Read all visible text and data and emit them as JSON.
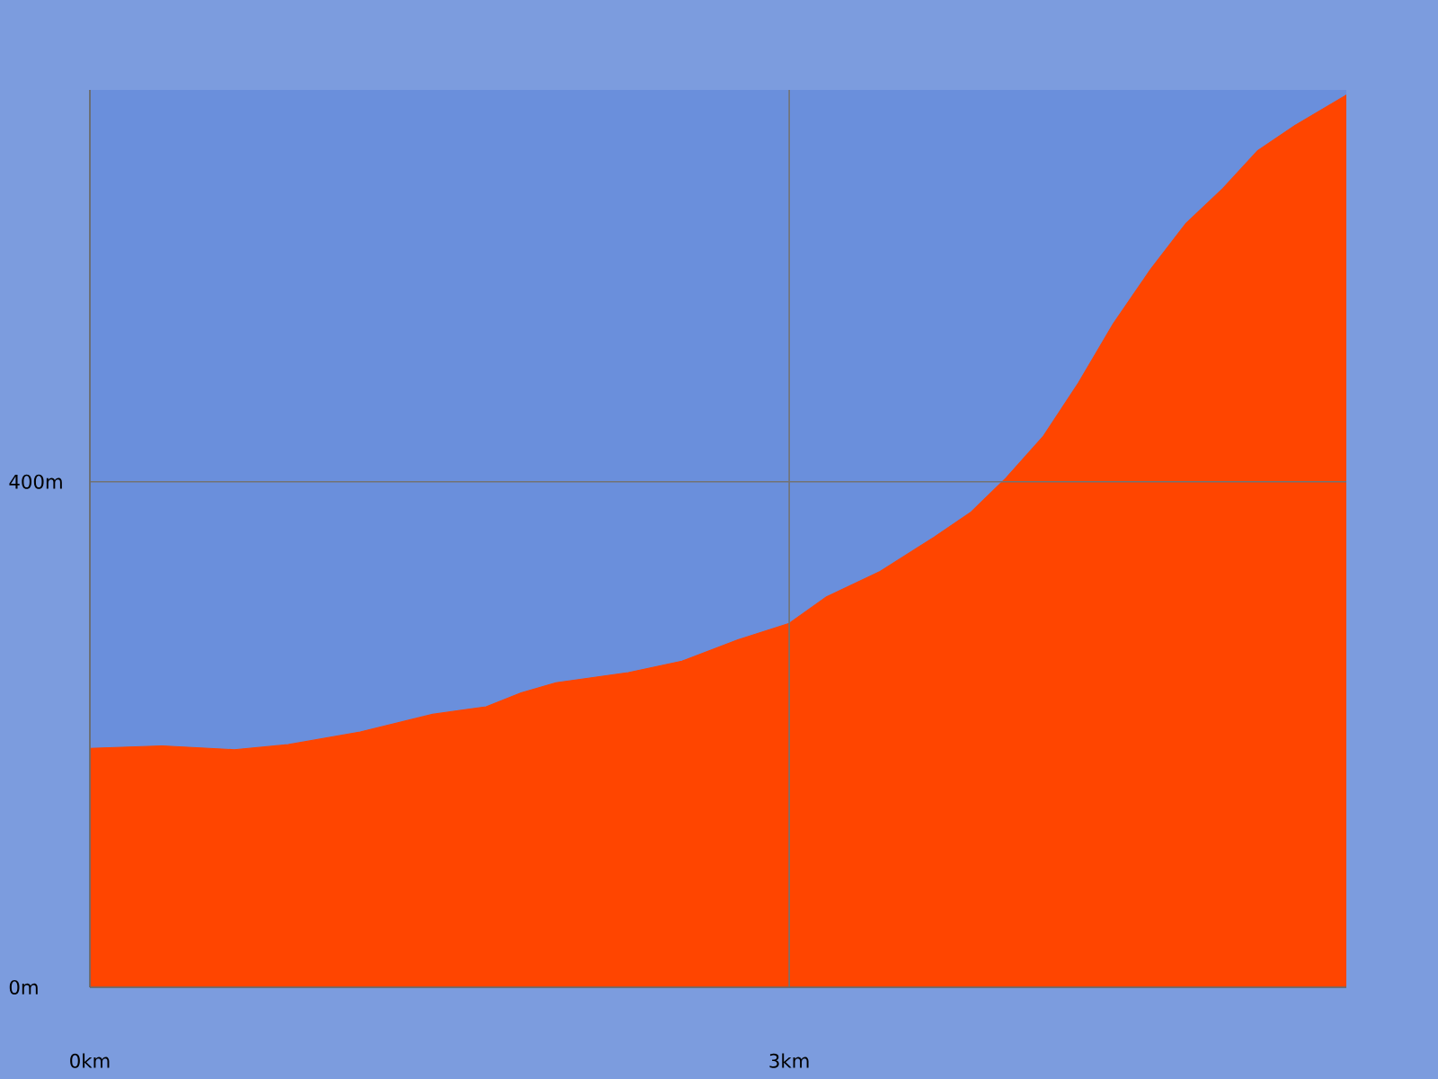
{
  "chart_data": {
    "type": "area",
    "x": [
      0,
      0.31,
      0.62,
      0.85,
      1.16,
      1.47,
      1.7,
      1.85,
      2.0,
      2.31,
      2.54,
      2.78,
      3.0,
      3.16,
      3.39,
      3.62,
      3.78,
      3.93,
      4.09,
      4.24,
      4.39,
      4.55,
      4.7,
      4.86,
      5.01,
      5.17,
      5.39
    ],
    "values": [
      189,
      191,
      188,
      192,
      202,
      216,
      222,
      233,
      241,
      249,
      258,
      275,
      288,
      309,
      329,
      356,
      376,
      403,
      436,
      478,
      525,
      568,
      604,
      632,
      662,
      682,
      706
    ],
    "color": "#ff4500",
    "xlim": [
      0,
      5.39
    ],
    "ylim": [
      0,
      710
    ],
    "xticks": [
      {
        "value": 0,
        "label": "0km"
      },
      {
        "value": 3,
        "label": "3km"
      }
    ],
    "yticks": [
      {
        "value": 0,
        "label": "0m"
      },
      {
        "value": 400,
        "label": "400m"
      }
    ],
    "grid": true
  }
}
